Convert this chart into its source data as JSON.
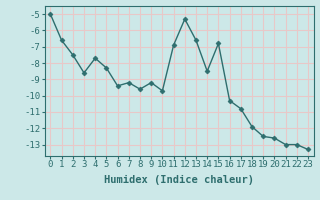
{
  "x": [
    0,
    1,
    2,
    3,
    4,
    5,
    6,
    7,
    8,
    9,
    10,
    11,
    12,
    13,
    14,
    15,
    16,
    17,
    18,
    19,
    20,
    21,
    22,
    23
  ],
  "y": [
    -5.0,
    -6.6,
    -7.5,
    -8.6,
    -7.7,
    -8.3,
    -9.4,
    -9.2,
    -9.6,
    -9.2,
    -9.7,
    -6.9,
    -5.3,
    -6.6,
    -8.5,
    -6.8,
    -10.3,
    -10.8,
    -11.9,
    -12.5,
    -12.6,
    -13.0,
    -13.0,
    -13.3
  ],
  "line_color": "#2e6e6e",
  "marker": "D",
  "marker_size": 2.5,
  "xlabel": "Humidex (Indice chaleur)",
  "xlim": [
    -0.5,
    23.5
  ],
  "ylim": [
    -13.7,
    -4.5
  ],
  "yticks": [
    -5,
    -6,
    -7,
    -8,
    -9,
    -10,
    -11,
    -12,
    -13
  ],
  "xticks": [
    0,
    1,
    2,
    3,
    4,
    5,
    6,
    7,
    8,
    9,
    10,
    11,
    12,
    13,
    14,
    15,
    16,
    17,
    18,
    19,
    20,
    21,
    22,
    23
  ],
  "xtick_labels": [
    "0",
    "1",
    "2",
    "3",
    "4",
    "5",
    "6",
    "7",
    "8",
    "9",
    "10",
    "11",
    "12",
    "13",
    "14",
    "15",
    "16",
    "17",
    "18",
    "19",
    "20",
    "21",
    "22",
    "23"
  ],
  "background_color": "#cce8e8",
  "grid_color": "#e8c8c8",
  "tick_color": "#2e6e6e",
  "label_color": "#2e6e6e",
  "font_size": 6.5,
  "xlabel_fontsize": 7.5,
  "linewidth": 1.0
}
